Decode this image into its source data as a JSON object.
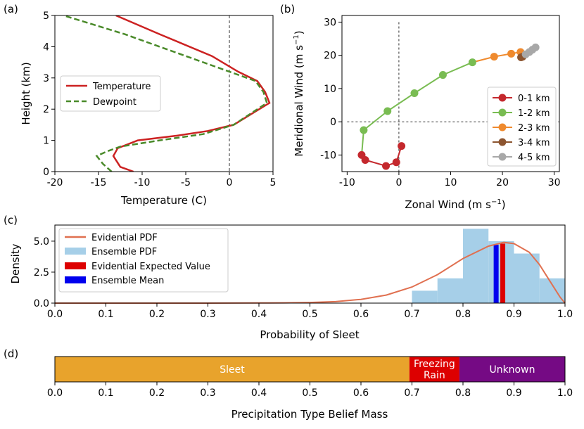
{
  "panel_labels": {
    "a": "(a)",
    "b": "(b)",
    "c": "(c)",
    "d": "(d)"
  },
  "colors": {
    "temperature": "#cc2222",
    "dewpoint": "#4a8a2a",
    "pdf": "#e07050",
    "ens": "#a6cfe8",
    "ev": "#dd0000",
    "mean": "#0000ee",
    "sleet": "#e8a32c",
    "frz": "#dd0000",
    "unk": "#750a84",
    "h0": "#c4282d",
    "h1": "#79bc52",
    "h2": "#ef8a2e",
    "h3": "#8c5530",
    "h4": "#a8a8a8"
  },
  "chart_data": [
    {
      "type": "line",
      "panel": "a",
      "xlabel": "Temperature (C)",
      "ylabel": "Height (km)",
      "xlim": [
        -20,
        5
      ],
      "ylim": [
        0,
        5
      ],
      "xticks": [
        "-20",
        "-15",
        "-10",
        "-5",
        "0",
        "5"
      ],
      "yticks": [
        "0",
        "1",
        "2",
        "3",
        "4",
        "5"
      ],
      "series": [
        {
          "name": "Temperature",
          "x": [
            -11,
            -12.5,
            -13.3,
            -12.8,
            -10.5,
            -6,
            -2.5,
            0.5,
            4.6,
            4.1,
            3.2,
            1.0,
            -2,
            -8,
            -13
          ],
          "y": [
            0,
            0.15,
            0.5,
            0.75,
            1.0,
            1.15,
            1.3,
            1.5,
            2.2,
            2.55,
            2.9,
            3.2,
            3.7,
            4.4,
            5.0
          ]
        },
        {
          "name": "Dewpoint",
          "x": [
            -13.5,
            -14.5,
            -15.2,
            -14.0,
            -12.5,
            -8,
            -3,
            0.5,
            4.3,
            3.9,
            3.0,
            0.0,
            -5,
            -12,
            -19
          ],
          "y": [
            0,
            0.25,
            0.5,
            0.65,
            0.8,
            1.0,
            1.2,
            1.5,
            2.2,
            2.55,
            2.9,
            3.2,
            3.7,
            4.4,
            5.0
          ]
        }
      ]
    },
    {
      "type": "line",
      "panel": "b",
      "xlabel": "Zonal Wind (m s",
      "xlabel_sup": "−1",
      "xlabel_end": ")",
      "ylabel": "Meridional Wind (m s",
      "ylabel_sup": "−1",
      "ylabel_end": ")",
      "xlim": [
        -11,
        31
      ],
      "ylim": [
        -15,
        32
      ],
      "xticks": [
        "-10",
        "0",
        "10",
        "20",
        "30"
      ],
      "yticks": [
        "-10",
        "0",
        "10",
        "20",
        "30"
      ],
      "series": [
        {
          "name": "0-1 km",
          "x": [
            0.5,
            -0.5,
            -2.5,
            -6.5,
            -7.2
          ],
          "y": [
            -7.3,
            -12.2,
            -13.3,
            -11.5,
            -10.0
          ]
        },
        {
          "name": "1-2 km",
          "x": [
            -7.2,
            -6.8,
            -2.2,
            3.0,
            8.5,
            14.2
          ],
          "y": [
            -10.0,
            -2.5,
            3.2,
            8.6,
            14.1,
            17.9
          ]
        },
        {
          "name": "2-3 km",
          "x": [
            14.2,
            18.4,
            21.7,
            23.5
          ],
          "y": [
            17.9,
            19.6,
            20.5,
            21.0
          ]
        },
        {
          "name": "3-4 km",
          "x": [
            23.5,
            23.6,
            23.9
          ],
          "y": [
            21.0,
            19.4,
            19.6
          ]
        },
        {
          "name": "4-5 km",
          "x": [
            23.9,
            24.5,
            25.2,
            25.8,
            26.4
          ],
          "y": [
            19.6,
            20.3,
            21.0,
            21.7,
            22.4
          ]
        }
      ]
    },
    {
      "type": "bar",
      "panel": "c",
      "xlabel": "Probability of Sleet",
      "ylabel": "Density",
      "xlim": [
        0,
        1
      ],
      "ylim": [
        0,
        6.3
      ],
      "xticks": [
        "0.0",
        "0.1",
        "0.2",
        "0.3",
        "0.4",
        "0.5",
        "0.6",
        "0.7",
        "0.8",
        "0.9",
        "1.0"
      ],
      "yticks": [
        "0.0",
        "2.5",
        "5.0"
      ],
      "histogram": {
        "name": "Ensemble PDF",
        "bin_edges": [
          0.7,
          0.75,
          0.8,
          0.85,
          0.9,
          0.95,
          1.0
        ],
        "values": [
          1.0,
          2.0,
          6.0,
          5.0,
          4.0,
          2.0
        ]
      },
      "evidential_pdf": {
        "name": "Evidential PDF",
        "x": [
          0,
          0.3,
          0.4,
          0.45,
          0.5,
          0.55,
          0.6,
          0.65,
          0.7,
          0.75,
          0.8,
          0.85,
          0.88,
          0.9,
          0.93,
          0.95,
          0.97,
          0.99,
          1.0
        ],
        "y": [
          0,
          0,
          0.01,
          0.02,
          0.05,
          0.12,
          0.3,
          0.65,
          1.3,
          2.3,
          3.6,
          4.6,
          4.9,
          4.8,
          4.1,
          3.1,
          1.8,
          0.5,
          0
        ]
      },
      "evidential_expected_value": {
        "name": "Evidential Expected Value",
        "x": 0.878,
        "height": 4.8
      },
      "ensemble_mean": {
        "name": "Ensemble Mean",
        "x": 0.865,
        "height": 4.7
      }
    },
    {
      "type": "bar",
      "panel": "d",
      "xlabel": "Precipitation Type Belief Mass",
      "xlim": [
        0,
        1
      ],
      "xticks": [
        "0.0",
        "0.1",
        "0.2",
        "0.3",
        "0.4",
        "0.5",
        "0.6",
        "0.7",
        "0.8",
        "0.9",
        "1.0"
      ],
      "segments": [
        {
          "name": "Sleet",
          "lines": [
            "Sleet"
          ],
          "start": 0.0,
          "end": 0.695
        },
        {
          "name": "Freezing Rain",
          "lines": [
            "Freezing",
            "Rain"
          ],
          "start": 0.695,
          "end": 0.793
        },
        {
          "name": "Unknown",
          "lines": [
            "Unknown"
          ],
          "start": 0.793,
          "end": 1.0
        }
      ]
    }
  ]
}
